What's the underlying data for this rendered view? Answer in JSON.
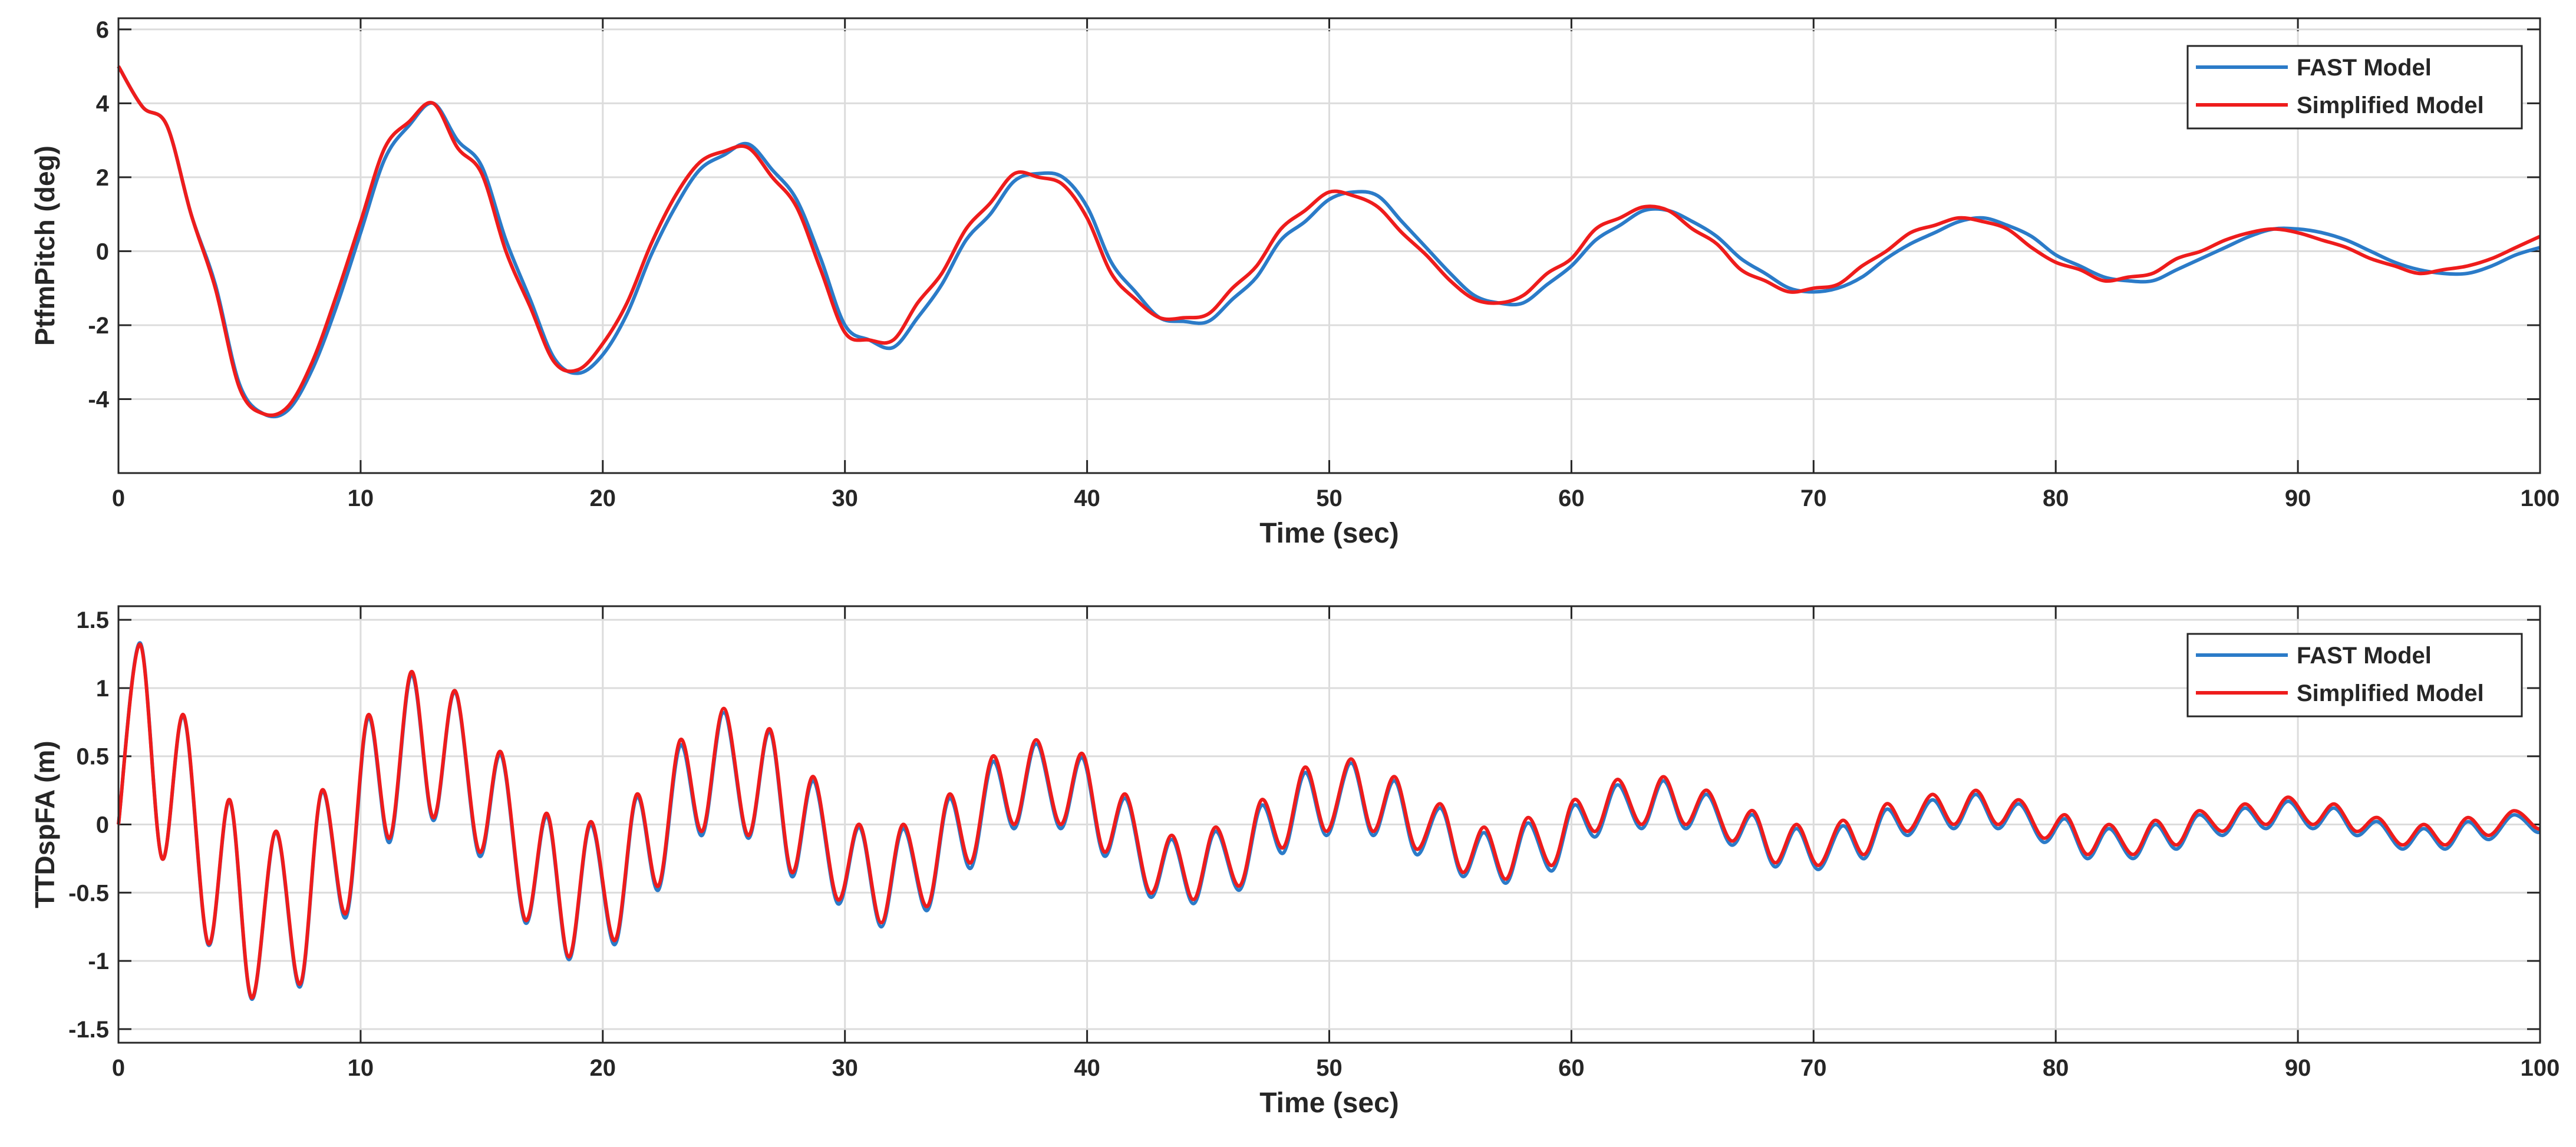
{
  "chart_data": [
    {
      "type": "line",
      "xlabel": "Time (sec)",
      "ylabel": "PtfmPitch (deg)",
      "grid": true,
      "legend": "upper right",
      "xlim": [
        0,
        100
      ],
      "xticks": [
        0,
        10,
        20,
        30,
        40,
        50,
        60,
        70,
        80,
        90,
        100
      ],
      "ylim": [
        -6,
        6.3
      ],
      "yticks": [
        -4,
        -2,
        0,
        2,
        4,
        6
      ],
      "x": [
        0,
        1,
        2,
        3,
        4,
        5,
        6,
        7,
        8,
        9,
        10,
        11,
        12,
        13,
        14,
        15,
        16,
        17,
        18,
        19,
        20,
        21,
        22,
        23,
        24,
        25,
        26,
        27,
        28,
        29,
        30,
        31,
        32,
        33,
        34,
        35,
        36,
        37,
        38,
        39,
        40,
        41,
        42,
        43,
        44,
        45,
        46,
        47,
        48,
        49,
        50,
        51,
        52,
        53,
        54,
        55,
        56,
        57,
        58,
        59,
        60,
        61,
        62,
        63,
        64,
        65,
        66,
        67,
        68,
        69,
        70,
        71,
        72,
        73,
        74,
        75,
        76,
        77,
        78,
        79,
        80,
        81,
        82,
        83,
        84,
        85,
        86,
        87,
        88,
        89,
        90,
        91,
        92,
        93,
        94,
        95,
        96,
        97,
        98,
        99,
        100
      ],
      "series": [
        {
          "name": "FAST Model",
          "color": "#2b7bc8",
          "values": [
            5,
            3.9,
            3.4,
            1.0,
            -0.9,
            -3.6,
            -4.4,
            -4.3,
            -3.2,
            -1.5,
            0.5,
            2.5,
            3.4,
            4.0,
            3.0,
            2.3,
            0.3,
            -1.3,
            -2.9,
            -3.3,
            -2.8,
            -1.7,
            -0.1,
            1.2,
            2.2,
            2.6,
            2.9,
            2.2,
            1.4,
            -0.2,
            -2.0,
            -2.4,
            -2.6,
            -1.8,
            -0.9,
            0.3,
            1.0,
            1.9,
            2.1,
            2.0,
            1.2,
            -0.3,
            -1.1,
            -1.8,
            -1.9,
            -1.9,
            -1.3,
            -0.7,
            0.3,
            0.8,
            1.4,
            1.6,
            1.5,
            0.8,
            0.1,
            -0.6,
            -1.2,
            -1.4,
            -1.4,
            -0.9,
            -0.4,
            0.3,
            0.7,
            1.1,
            1.1,
            0.8,
            0.4,
            -0.2,
            -0.6,
            -1.0,
            -1.1,
            -1.0,
            -0.7,
            -0.2,
            0.2,
            0.5,
            0.8,
            0.9,
            0.7,
            0.4,
            -0.1,
            -0.4,
            -0.7,
            -0.8,
            -0.8,
            -0.5,
            -0.2,
            0.1,
            0.4,
            0.6,
            0.6,
            0.5,
            0.3,
            0.0,
            -0.3,
            -0.5,
            -0.6,
            -0.6,
            -0.4,
            -0.1,
            0.1
          ]
        },
        {
          "name": "Simplified Model",
          "color": "#ee1c1c",
          "values": [
            5,
            3.9,
            3.4,
            1.0,
            -1.0,
            -3.7,
            -4.4,
            -4.2,
            -3.0,
            -1.2,
            0.8,
            2.8,
            3.5,
            4.0,
            2.8,
            2.1,
            0.0,
            -1.5,
            -3.0,
            -3.2,
            -2.5,
            -1.4,
            0.2,
            1.5,
            2.4,
            2.7,
            2.8,
            2.0,
            1.2,
            -0.5,
            -2.2,
            -2.4,
            -2.4,
            -1.4,
            -0.6,
            0.6,
            1.3,
            2.1,
            2.0,
            1.8,
            0.9,
            -0.6,
            -1.3,
            -1.8,
            -1.8,
            -1.7,
            -1.0,
            -0.4,
            0.6,
            1.1,
            1.6,
            1.5,
            1.2,
            0.5,
            -0.1,
            -0.8,
            -1.3,
            -1.4,
            -1.2,
            -0.6,
            -0.2,
            0.6,
            0.9,
            1.2,
            1.1,
            0.6,
            0.2,
            -0.5,
            -0.8,
            -1.1,
            -1.0,
            -0.9,
            -0.4,
            0.0,
            0.5,
            0.7,
            0.9,
            0.8,
            0.6,
            0.1,
            -0.3,
            -0.5,
            -0.8,
            -0.7,
            -0.6,
            -0.2,
            0.0,
            0.3,
            0.5,
            0.6,
            0.5,
            0.3,
            0.1,
            -0.2,
            -0.4,
            -0.6,
            -0.5,
            -0.4,
            -0.2,
            0.1,
            0.4
          ]
        }
      ]
    },
    {
      "type": "line",
      "xlabel": "Time (sec)",
      "ylabel": "TTDspFA (m)",
      "grid": true,
      "legend": "upper right",
      "xlim": [
        0,
        100
      ],
      "xticks": [
        0,
        10,
        20,
        30,
        40,
        50,
        60,
        70,
        80,
        90,
        100
      ],
      "ylim": [
        -1.6,
        1.6
      ],
      "yticks": [
        -1.5,
        -1,
        -0.5,
        0,
        0.5,
        1,
        1.5
      ],
      "x": [
        0,
        0.9,
        1.8,
        2.7,
        3.7,
        4.6,
        5.5,
        6.5,
        7.5,
        8.4,
        9.4,
        10.3,
        11.2,
        12.1,
        13.0,
        13.9,
        14.9,
        15.8,
        16.8,
        17.7,
        18.6,
        19.5,
        20.5,
        21.4,
        22.3,
        23.2,
        24.1,
        25.0,
        26.0,
        26.9,
        27.8,
        28.7,
        29.7,
        30.6,
        31.5,
        32.4,
        33.4,
        34.3,
        35.2,
        36.1,
        37.0,
        37.9,
        38.9,
        39.8,
        40.7,
        41.6,
        42.6,
        43.5,
        44.4,
        45.3,
        46.3,
        47.2,
        48.1,
        49.0,
        49.9,
        50.9,
        51.8,
        52.7,
        53.6,
        54.6,
        55.5,
        56.4,
        57.3,
        58.2,
        59.2,
        60.1,
        61.0,
        61.9,
        62.9,
        63.8,
        64.7,
        65.6,
        66.6,
        67.5,
        68.4,
        69.3,
        70.2,
        71.2,
        72.1,
        73.0,
        73.9,
        74.9,
        75.8,
        76.7,
        77.6,
        78.5,
        79.5,
        80.4,
        81.3,
        82.2,
        83.2,
        84.1,
        85.0,
        85.9,
        86.9,
        87.8,
        88.7,
        89.6,
        90.6,
        91.5,
        92.4,
        93.3,
        94.3,
        95.2,
        96.1,
        97.0,
        97.9,
        98.9,
        99.8,
        100
      ],
      "series": [
        {
          "name": "FAST Model",
          "color": "#2b7bc8",
          "values": [
            0,
            1.33,
            -0.25,
            0.79,
            -0.88,
            0.17,
            -1.28,
            -0.06,
            -1.19,
            0.24,
            -0.68,
            0.78,
            -0.13,
            1.1,
            0.03,
            0.97,
            -0.23,
            0.51,
            -0.72,
            0.06,
            -0.99,
            0.0,
            -0.88,
            0.2,
            -0.48,
            0.58,
            -0.08,
            0.82,
            -0.1,
            0.68,
            -0.38,
            0.32,
            -0.58,
            -0.02,
            -0.75,
            -0.03,
            -0.63,
            0.19,
            -0.32,
            0.46,
            -0.03,
            0.59,
            -0.03,
            0.49,
            -0.23,
            0.19,
            -0.53,
            -0.11,
            -0.58,
            -0.05,
            -0.48,
            0.14,
            -0.21,
            0.38,
            -0.08,
            0.45,
            -0.08,
            0.32,
            -0.22,
            0.12,
            -0.38,
            -0.06,
            -0.43,
            0.01,
            -0.34,
            0.14,
            -0.09,
            0.29,
            -0.03,
            0.32,
            -0.03,
            0.22,
            -0.15,
            0.07,
            -0.31,
            -0.03,
            -0.33,
            -0.01,
            -0.25,
            0.11,
            -0.08,
            0.18,
            -0.03,
            0.22,
            -0.03,
            0.15,
            -0.13,
            0.04,
            -0.25,
            -0.03,
            -0.25,
            0.0,
            -0.18,
            0.07,
            -0.08,
            0.12,
            -0.03,
            0.17,
            -0.03,
            0.12,
            -0.08,
            0.02,
            -0.18,
            -0.03,
            -0.18,
            0.02,
            -0.11,
            0.07,
            -0.05,
            -0.05
          ]
        },
        {
          "name": "Simplified Model",
          "color": "#ee1c1c",
          "values": [
            0,
            1.32,
            -0.25,
            0.8,
            -0.87,
            0.18,
            -1.27,
            -0.05,
            -1.17,
            0.25,
            -0.65,
            0.8,
            -0.1,
            1.12,
            0.05,
            0.98,
            -0.2,
            0.53,
            -0.7,
            0.08,
            -0.97,
            0.02,
            -0.85,
            0.22,
            -0.45,
            0.62,
            -0.05,
            0.85,
            -0.08,
            0.7,
            -0.35,
            0.35,
            -0.55,
            0.0,
            -0.72,
            0.0,
            -0.6,
            0.22,
            -0.28,
            0.5,
            0.0,
            0.62,
            0.0,
            0.52,
            -0.2,
            0.22,
            -0.5,
            -0.08,
            -0.55,
            -0.02,
            -0.45,
            0.18,
            -0.17,
            0.42,
            -0.05,
            0.48,
            -0.05,
            0.35,
            -0.18,
            0.15,
            -0.35,
            -0.02,
            -0.4,
            0.05,
            -0.3,
            0.18,
            -0.05,
            0.33,
            0.0,
            0.35,
            0.0,
            0.25,
            -0.12,
            0.1,
            -0.28,
            0.0,
            -0.3,
            0.03,
            -0.22,
            0.15,
            -0.05,
            0.22,
            0.0,
            0.25,
            0.0,
            0.18,
            -0.1,
            0.07,
            -0.22,
            0.0,
            -0.22,
            0.03,
            -0.15,
            0.1,
            -0.05,
            0.15,
            0.0,
            0.2,
            0.0,
            0.15,
            -0.05,
            0.05,
            -0.15,
            0.0,
            -0.15,
            0.05,
            -0.08,
            0.1,
            -0.02,
            -0.03
          ]
        }
      ]
    }
  ]
}
